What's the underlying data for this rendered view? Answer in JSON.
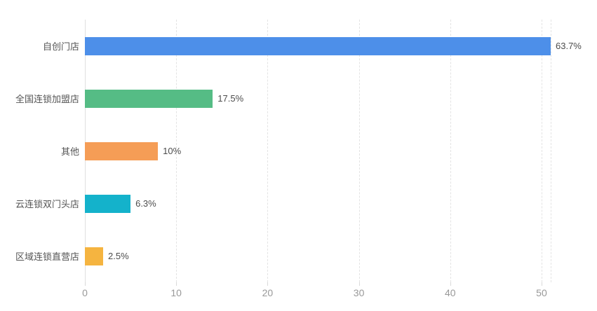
{
  "chart_data": {
    "type": "bar",
    "orientation": "horizontal",
    "title": "",
    "xlabel": "",
    "ylabel": "",
    "legend": "none",
    "grid": "vertical-dashed",
    "categories": [
      "自创门店",
      "全国连锁加盟店",
      "其他",
      "云连锁双门头店",
      "区域连锁直营店"
    ],
    "values": [
      51,
      14,
      8,
      5,
      2
    ],
    "percent_labels": [
      "63.7%",
      "17.5%",
      "10%",
      "6.3%",
      "2.5%"
    ],
    "bar_colors": [
      "#4D8FE9",
      "#55BC85",
      "#F59D56",
      "#14B2CB",
      "#F5B440"
    ],
    "x_ticks": [
      0,
      10,
      20,
      30,
      40,
      50
    ],
    "xlim": [
      0,
      51
    ]
  },
  "colors": {
    "background": "#ffffff",
    "gridline": "#e3e3e3",
    "axis_line": "#e0e0e0",
    "tick_label": "#999999",
    "category_label": "#555555",
    "value_label": "#4c4c4c"
  }
}
